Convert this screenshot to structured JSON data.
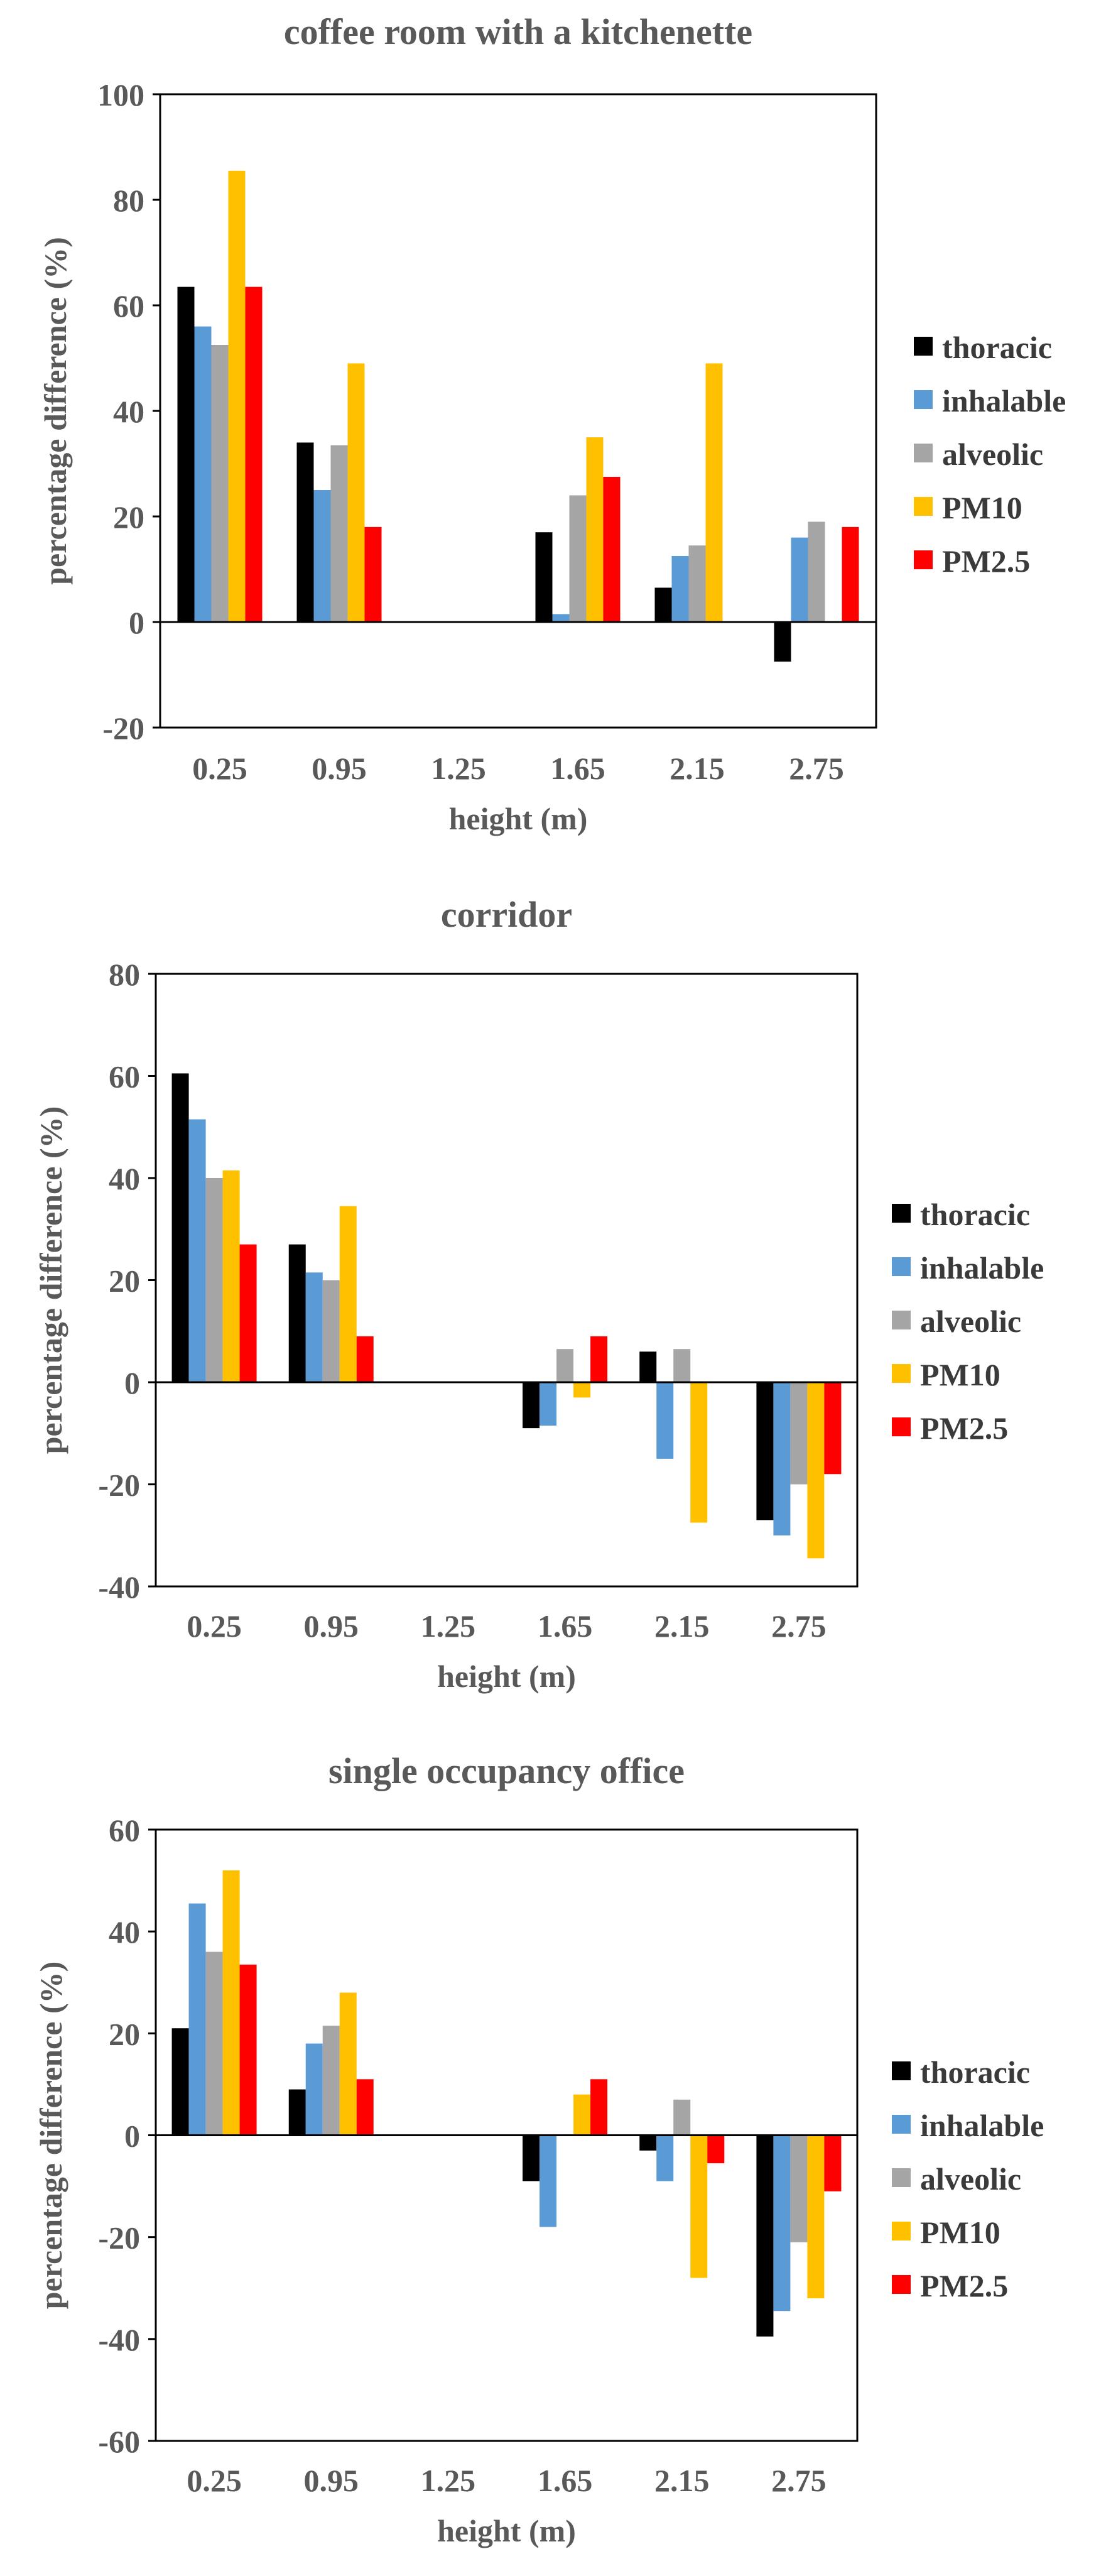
{
  "colors": {
    "thoracic": "#000000",
    "inhalable": "#5b9bd5",
    "alveolic": "#a5a5a5",
    "PM10": "#ffc000",
    "PM2.5": "#ff0000",
    "text": "#595959",
    "axis": "#000000"
  },
  "chart_data": [
    {
      "type": "bar",
      "title": "coffee room with a kitchenette",
      "xlabel": "height (m)",
      "ylabel": "percentage difference (%)",
      "categories": [
        "0.25",
        "0.95",
        "1.25",
        "1.65",
        "2.15",
        "2.75"
      ],
      "ylim": [
        -20,
        100
      ],
      "yticks": [
        -20,
        0,
        20,
        40,
        60,
        80,
        100
      ],
      "grid": false,
      "legend_position": "right",
      "series": [
        {
          "name": "thoracic",
          "values": [
            63.5,
            34,
            0,
            17,
            6.5,
            -7.5
          ]
        },
        {
          "name": "inhalable",
          "values": [
            56,
            25,
            0,
            1.5,
            12.5,
            16
          ]
        },
        {
          "name": "alveolic",
          "values": [
            52.5,
            33.5,
            0,
            24,
            14.5,
            19
          ]
        },
        {
          "name": "PM10",
          "values": [
            85.5,
            49,
            0,
            35,
            49,
            0
          ]
        },
        {
          "name": "PM2.5",
          "values": [
            63.5,
            18,
            0,
            27.5,
            0,
            18
          ]
        }
      ]
    },
    {
      "type": "bar",
      "title": "corridor",
      "xlabel": "height (m)",
      "ylabel": "percentage difference (%)",
      "categories": [
        "0.25",
        "0.95",
        "1.25",
        "1.65",
        "2.15",
        "2.75"
      ],
      "ylim": [
        -40,
        80
      ],
      "yticks": [
        -40,
        -20,
        0,
        20,
        40,
        60,
        80
      ],
      "grid": false,
      "legend_position": "right",
      "series": [
        {
          "name": "thoracic",
          "values": [
            60.5,
            27,
            0,
            -9,
            6,
            -27
          ]
        },
        {
          "name": "inhalable",
          "values": [
            51.5,
            21.5,
            0,
            -8.5,
            -15,
            -30
          ]
        },
        {
          "name": "alveolic",
          "values": [
            40,
            20,
            0,
            6.5,
            6.5,
            -20
          ]
        },
        {
          "name": "PM10",
          "values": [
            41.5,
            34.5,
            0,
            -3,
            -27.5,
            -34.5
          ]
        },
        {
          "name": "PM2.5",
          "values": [
            27,
            9,
            0,
            9,
            0,
            -18
          ]
        }
      ]
    },
    {
      "type": "bar",
      "title": "single occupancy office",
      "xlabel": "height (m)",
      "ylabel": "percentage difference (%)",
      "categories": [
        "0.25",
        "0.95",
        "1.25",
        "1.65",
        "2.15",
        "2.75"
      ],
      "ylim": [
        -60,
        60
      ],
      "yticks": [
        -60,
        -40,
        -20,
        0,
        20,
        40,
        60
      ],
      "grid": false,
      "legend_position": "right",
      "series": [
        {
          "name": "thoracic",
          "values": [
            21,
            9,
            0,
            -9,
            -3,
            -39.5
          ]
        },
        {
          "name": "inhalable",
          "values": [
            45.5,
            18,
            0,
            -18,
            -9,
            -34.5
          ]
        },
        {
          "name": "alveolic",
          "values": [
            36,
            21.5,
            0,
            0,
            7,
            -21
          ]
        },
        {
          "name": "PM10",
          "values": [
            52,
            28,
            0,
            8,
            -28,
            -32
          ]
        },
        {
          "name": "PM2.5",
          "values": [
            33.5,
            11,
            0,
            11,
            -5.5,
            -11
          ]
        }
      ]
    }
  ]
}
